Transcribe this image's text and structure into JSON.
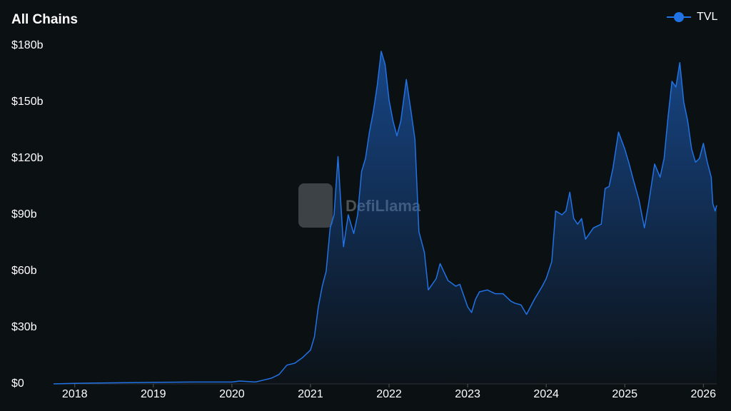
{
  "chart_data": {
    "type": "area",
    "title": "All Chains",
    "watermark": "DefiLlama",
    "x": [
      2017.73,
      2018.0,
      2019.0,
      2019.5,
      2020.0,
      2020.1,
      2020.3,
      2020.4,
      2020.5,
      2020.6,
      2020.7,
      2020.8,
      2020.9,
      2021.0,
      2021.05,
      2021.1,
      2021.15,
      2021.2,
      2021.25,
      2021.3,
      2021.35,
      2021.38,
      2021.42,
      2021.48,
      2021.55,
      2021.6,
      2021.65,
      2021.7,
      2021.75,
      2021.8,
      2021.85,
      2021.9,
      2021.95,
      2022.0,
      2022.05,
      2022.1,
      2022.15,
      2022.22,
      2022.28,
      2022.33,
      2022.38,
      2022.45,
      2022.5,
      2022.6,
      2022.65,
      2022.75,
      2022.85,
      2022.9,
      2023.0,
      2023.05,
      2023.1,
      2023.15,
      2023.25,
      2023.35,
      2023.45,
      2023.55,
      2023.6,
      2023.68,
      2023.75,
      2023.85,
      2023.95,
      2024.0,
      2024.07,
      2024.12,
      2024.2,
      2024.25,
      2024.3,
      2024.35,
      2024.4,
      2024.45,
      2024.5,
      2024.55,
      2024.6,
      2024.7,
      2024.75,
      2024.8,
      2024.85,
      2024.92,
      2025.0,
      2025.05,
      2025.1,
      2025.18,
      2025.25,
      2025.3,
      2025.38,
      2025.45,
      2025.5,
      2025.55,
      2025.6,
      2025.65,
      2025.7,
      2025.75,
      2025.8,
      2025.85,
      2025.9,
      2025.95,
      2026.0,
      2026.05,
      2026.1,
      2026.12,
      2026.15,
      2026.17
    ],
    "series": [
      {
        "name": "TVL",
        "color": "#2172e5",
        "values": [
          0,
          0.3,
          0.8,
          1,
          1,
          1.5,
          1,
          2,
          3,
          5,
          10,
          11,
          14,
          18,
          25,
          41,
          52,
          60,
          83,
          90,
          121,
          100,
          73,
          90,
          80,
          90,
          113,
          120,
          134,
          145,
          159,
          177,
          170,
          151,
          140,
          132,
          140,
          162,
          145,
          130,
          81,
          70,
          50,
          56,
          64,
          55,
          52,
          53,
          41,
          38,
          45,
          49,
          50,
          48,
          48,
          44,
          43,
          42,
          37,
          45,
          52,
          56,
          65,
          92,
          90,
          92,
          102,
          88,
          85,
          88,
          77,
          80,
          83,
          85,
          104,
          105,
          115,
          134,
          125,
          118,
          110,
          98,
          83,
          95,
          117,
          110,
          120,
          142,
          161,
          158,
          171,
          150,
          140,
          125,
          118,
          120,
          128,
          118,
          110,
          96,
          92,
          95
        ]
      }
    ],
    "xlim": [
      2017.73,
      2026.17
    ],
    "xticks": [
      2018,
      2019,
      2020,
      2021,
      2022,
      2023,
      2024,
      2025,
      2026
    ],
    "ylim": [
      0,
      180
    ],
    "yticks": [
      {
        "value": 0,
        "label": "$0"
      },
      {
        "value": 30,
        "label": "$30b"
      },
      {
        "value": 60,
        "label": "$60b"
      },
      {
        "value": 90,
        "label": "$90b"
      },
      {
        "value": 120,
        "label": "$120b"
      },
      {
        "value": 150,
        "label": "$150b"
      },
      {
        "value": 180,
        "label": "$180b"
      }
    ],
    "legend": "top-right"
  }
}
